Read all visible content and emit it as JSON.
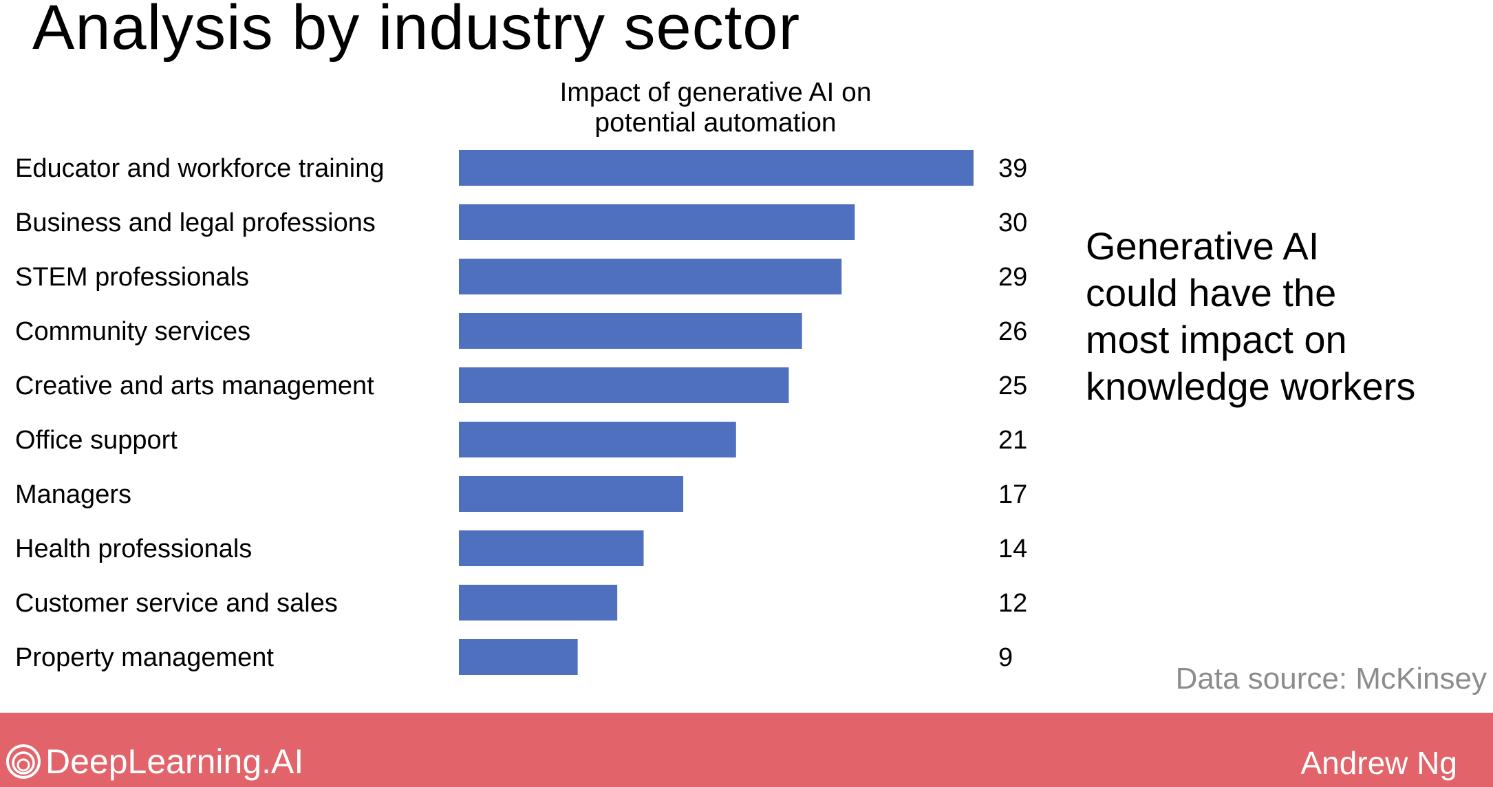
{
  "slide": {
    "title": "Analysis by industry sector",
    "takeaway": "Generative AI\ncould have the\nmost impact on\nknowledge workers",
    "data_source": "Data source: McKinsey"
  },
  "footer": {
    "logo_text": "DeepLearning.AI",
    "author": "Andrew Ng",
    "band_color": "#e2636a",
    "logo_icon": "deeplearning-ai-logo-icon"
  },
  "chart_data": {
    "type": "bar",
    "orientation": "horizontal",
    "title": "Impact of generative AI on\npotential automation",
    "categories": [
      "Educator and workforce training",
      "Business and legal professions",
      "STEM professionals",
      "Community  services",
      "Creative and arts management",
      "Office support",
      "Managers",
      "Health professionals",
      "Customer  service and sales",
      "Property management"
    ],
    "values": [
      39,
      30,
      29,
      26,
      25,
      21,
      17,
      14,
      12,
      9
    ],
    "xlim": [
      0,
      39
    ],
    "bar_color": "#4f6fbf",
    "grid": false,
    "legend": "none",
    "data_labels": true
  }
}
